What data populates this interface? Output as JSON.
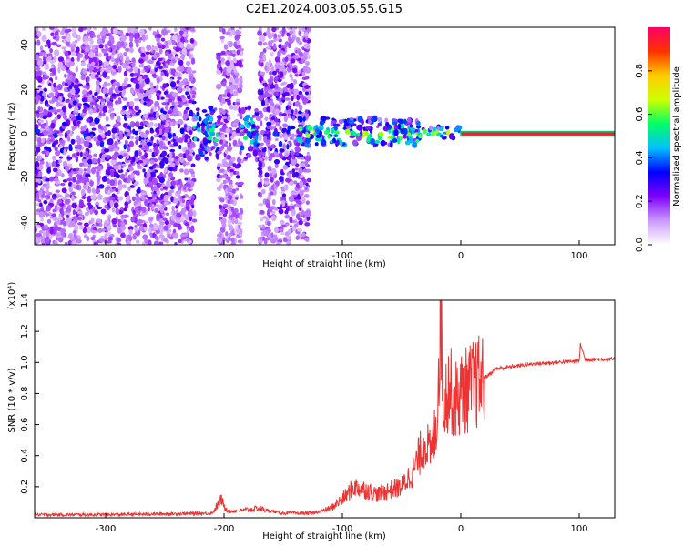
{
  "figure": {
    "title": "C2E1.2024.003.05.55.G15"
  },
  "chart_data": [
    {
      "type": "heatmap",
      "title": "C2E1.2024.003.05.55.G15",
      "xlabel": "Height of straight line (km)",
      "ylabel": "Frequency (Hz)",
      "xlim": [
        -360,
        130
      ],
      "ylim": [
        -50,
        48
      ],
      "xticks": [
        -300,
        -200,
        -100,
        0,
        100
      ],
      "yticks": [
        -40,
        -20,
        0,
        20,
        40
      ],
      "grid": false,
      "colorbar": {
        "label": "Normalized spectral amplitude",
        "range": [
          0,
          1
        ],
        "ticks": [
          "0.0",
          "0.2",
          "0.4",
          "0.6",
          "0.8"
        ],
        "colors": [
          "#ffffff",
          "#cc99ff",
          "#7f00ff",
          "#0000ff",
          "#00bfff",
          "#00ff66",
          "#ccff00",
          "#ffcc00",
          "#ff3300",
          "#ff0066"
        ]
      },
      "regions": [
        {
          "x": [
            -360,
            -225
          ],
          "freq": [
            -50,
            48
          ],
          "level": 0.3
        },
        {
          "x": [
            -225,
            -205
          ],
          "freq": [
            -12,
            12
          ],
          "level": 0.5
        },
        {
          "x": [
            -205,
            -185
          ],
          "freq": [
            -50,
            48
          ],
          "level": 0.25
        },
        {
          "x": [
            -185,
            -170
          ],
          "freq": [
            -12,
            12
          ],
          "level": 0.5
        },
        {
          "x": [
            -170,
            -128
          ],
          "freq": [
            -50,
            48
          ],
          "level": 0.3
        },
        {
          "x": [
            -138,
            -35
          ],
          "freq": [
            -5,
            7
          ],
          "level": 0.6
        },
        {
          "x": [
            -35,
            0
          ],
          "freq": [
            -2,
            3
          ],
          "level": 0.7
        },
        {
          "x": [
            0,
            130
          ],
          "freq": [
            -1,
            1
          ],
          "level": 0.95
        }
      ]
    },
    {
      "type": "line",
      "xlabel": "Height of straight line (km)",
      "ylabel": "SNR (10 * v/v)",
      "yscale_label": "(x10⁴)",
      "xlim": [
        -360,
        130
      ],
      "ylim": [
        0,
        1.4
      ],
      "xticks": [
        -300,
        -200,
        -100,
        0,
        100
      ],
      "yticks": [
        "0.2",
        "0.4",
        "0.6",
        "0.8",
        "1.0",
        "1.2",
        "1.4"
      ],
      "grid": false,
      "color": "#ee3333",
      "series": [
        {
          "x": [
            -360,
            -300,
            -250,
            -210,
            -202,
            -200,
            -195,
            -170,
            -165,
            -150,
            -125,
            -110,
            -100,
            -90,
            -80,
            -70,
            -60,
            -50,
            -40,
            -30,
            -25,
            -20,
            -17,
            -15,
            -10,
            -5,
            0,
            10,
            20,
            30,
            40,
            60,
            80,
            100,
            101,
            105,
            120,
            130
          ],
          "y": [
            0.02,
            0.02,
            0.025,
            0.03,
            0.12,
            0.07,
            0.04,
            0.06,
            0.05,
            0.03,
            0.03,
            0.06,
            0.12,
            0.2,
            0.18,
            0.15,
            0.18,
            0.2,
            0.3,
            0.5,
            0.4,
            0.65,
            1.4,
            0.75,
            0.85,
            0.75,
            0.8,
            0.85,
            0.9,
            0.96,
            0.97,
            0.99,
            1.0,
            1.01,
            1.12,
            1.02,
            1.02,
            1.02
          ]
        }
      ]
    }
  ]
}
